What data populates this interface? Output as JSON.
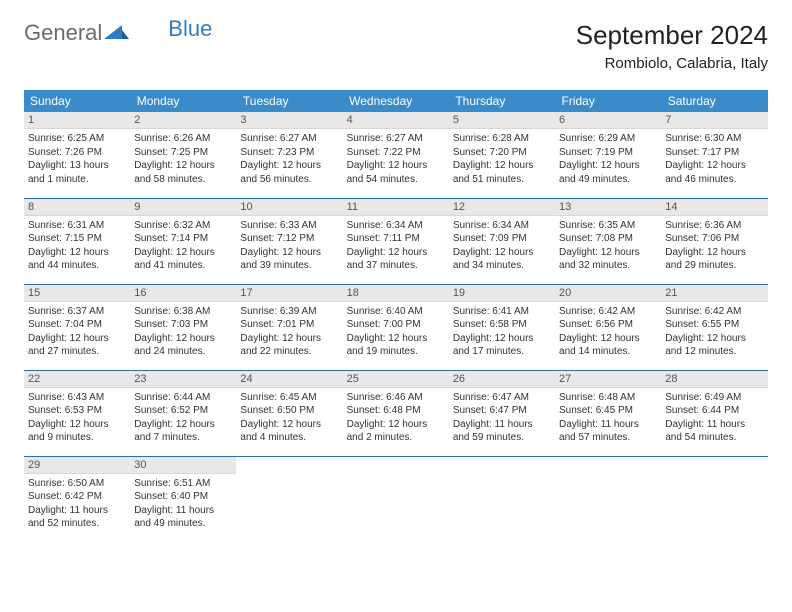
{
  "logo": {
    "part1": "General",
    "part2": "Blue"
  },
  "title": "September 2024",
  "location": "Rombiolo, Calabria, Italy",
  "header_bg": "#3a8bc9",
  "rule_color": "#2f6ea3",
  "daynum_bg": "#e8e8e8",
  "weekdays": [
    "Sunday",
    "Monday",
    "Tuesday",
    "Wednesday",
    "Thursday",
    "Friday",
    "Saturday"
  ],
  "days": [
    {
      "n": 1,
      "sr": "6:25 AM",
      "ss": "7:26 PM",
      "dl": "13 hours and 1 minute."
    },
    {
      "n": 2,
      "sr": "6:26 AM",
      "ss": "7:25 PM",
      "dl": "12 hours and 58 minutes."
    },
    {
      "n": 3,
      "sr": "6:27 AM",
      "ss": "7:23 PM",
      "dl": "12 hours and 56 minutes."
    },
    {
      "n": 4,
      "sr": "6:27 AM",
      "ss": "7:22 PM",
      "dl": "12 hours and 54 minutes."
    },
    {
      "n": 5,
      "sr": "6:28 AM",
      "ss": "7:20 PM",
      "dl": "12 hours and 51 minutes."
    },
    {
      "n": 6,
      "sr": "6:29 AM",
      "ss": "7:19 PM",
      "dl": "12 hours and 49 minutes."
    },
    {
      "n": 7,
      "sr": "6:30 AM",
      "ss": "7:17 PM",
      "dl": "12 hours and 46 minutes."
    },
    {
      "n": 8,
      "sr": "6:31 AM",
      "ss": "7:15 PM",
      "dl": "12 hours and 44 minutes."
    },
    {
      "n": 9,
      "sr": "6:32 AM",
      "ss": "7:14 PM",
      "dl": "12 hours and 41 minutes."
    },
    {
      "n": 10,
      "sr": "6:33 AM",
      "ss": "7:12 PM",
      "dl": "12 hours and 39 minutes."
    },
    {
      "n": 11,
      "sr": "6:34 AM",
      "ss": "7:11 PM",
      "dl": "12 hours and 37 minutes."
    },
    {
      "n": 12,
      "sr": "6:34 AM",
      "ss": "7:09 PM",
      "dl": "12 hours and 34 minutes."
    },
    {
      "n": 13,
      "sr": "6:35 AM",
      "ss": "7:08 PM",
      "dl": "12 hours and 32 minutes."
    },
    {
      "n": 14,
      "sr": "6:36 AM",
      "ss": "7:06 PM",
      "dl": "12 hours and 29 minutes."
    },
    {
      "n": 15,
      "sr": "6:37 AM",
      "ss": "7:04 PM",
      "dl": "12 hours and 27 minutes."
    },
    {
      "n": 16,
      "sr": "6:38 AM",
      "ss": "7:03 PM",
      "dl": "12 hours and 24 minutes."
    },
    {
      "n": 17,
      "sr": "6:39 AM",
      "ss": "7:01 PM",
      "dl": "12 hours and 22 minutes."
    },
    {
      "n": 18,
      "sr": "6:40 AM",
      "ss": "7:00 PM",
      "dl": "12 hours and 19 minutes."
    },
    {
      "n": 19,
      "sr": "6:41 AM",
      "ss": "6:58 PM",
      "dl": "12 hours and 17 minutes."
    },
    {
      "n": 20,
      "sr": "6:42 AM",
      "ss": "6:56 PM",
      "dl": "12 hours and 14 minutes."
    },
    {
      "n": 21,
      "sr": "6:42 AM",
      "ss": "6:55 PM",
      "dl": "12 hours and 12 minutes."
    },
    {
      "n": 22,
      "sr": "6:43 AM",
      "ss": "6:53 PM",
      "dl": "12 hours and 9 minutes."
    },
    {
      "n": 23,
      "sr": "6:44 AM",
      "ss": "6:52 PM",
      "dl": "12 hours and 7 minutes."
    },
    {
      "n": 24,
      "sr": "6:45 AM",
      "ss": "6:50 PM",
      "dl": "12 hours and 4 minutes."
    },
    {
      "n": 25,
      "sr": "6:46 AM",
      "ss": "6:48 PM",
      "dl": "12 hours and 2 minutes."
    },
    {
      "n": 26,
      "sr": "6:47 AM",
      "ss": "6:47 PM",
      "dl": "11 hours and 59 minutes."
    },
    {
      "n": 27,
      "sr": "6:48 AM",
      "ss": "6:45 PM",
      "dl": "11 hours and 57 minutes."
    },
    {
      "n": 28,
      "sr": "6:49 AM",
      "ss": "6:44 PM",
      "dl": "11 hours and 54 minutes."
    },
    {
      "n": 29,
      "sr": "6:50 AM",
      "ss": "6:42 PM",
      "dl": "11 hours and 52 minutes."
    },
    {
      "n": 30,
      "sr": "6:51 AM",
      "ss": "6:40 PM",
      "dl": "11 hours and 49 minutes."
    }
  ],
  "labels": {
    "sunrise": "Sunrise:",
    "sunset": "Sunset:",
    "daylight": "Daylight:"
  }
}
